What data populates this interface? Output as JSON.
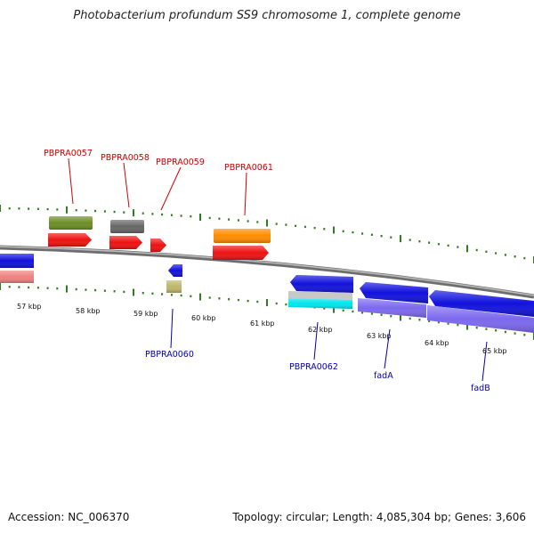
{
  "header": {
    "title": "Photobacterium profundum SS9 chromosome 1, complete genome"
  },
  "footer": {
    "accession": "Accession: NC_006370",
    "summary": "Topology: circular; Length: 4,085,304 bp; Genes: 3,606"
  },
  "colors": {
    "backbone": "#888888",
    "tick": "#2e7d1e",
    "label_forward": "#cc0000",
    "label_reverse": "#0000aa",
    "red": "#ee1111",
    "blue": "#1111dd",
    "olive": "#6b8e23",
    "gray": "#666666",
    "orange": "#ff8c00",
    "salmon": "#f08080",
    "khaki": "#bdb76b",
    "silver": "#c8c8c8",
    "cyan": "#00e5ee",
    "lavender": "#7b68ee"
  },
  "scale_labels": [
    "57 kbp",
    "58 kbp",
    "59 kbp",
    "60 kbp",
    "61 kbp",
    "62 kbp",
    "63 kbp",
    "64 kbp",
    "65 kbp"
  ],
  "gene_labels": {
    "PBPRA0057": "PBPRA0057",
    "PBPRA0058": "PBPRA0058",
    "PBPRA0059": "PBPRA0059",
    "PBPRA0060": "PBPRA0060",
    "PBPRA0061": "PBPRA0061",
    "PBPRA0062": "PBPRA0062",
    "fadA": "fadA",
    "fadB": "fadB"
  }
}
